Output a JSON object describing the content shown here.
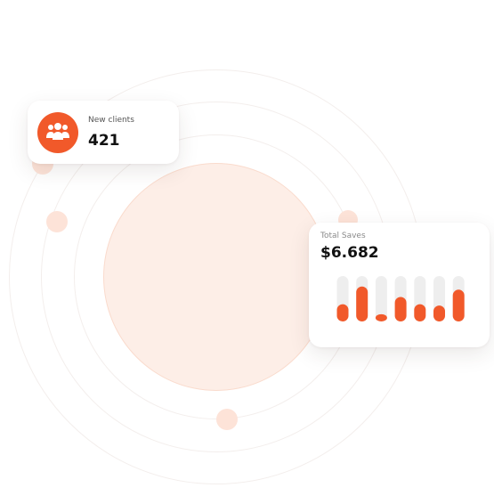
{
  "new_clients": {
    "label": "New clients",
    "value": "421",
    "icon": "users-group-icon"
  },
  "total_saves": {
    "label": "Total Saves",
    "value": "$6.682"
  },
  "colors": {
    "accent": "#f1592a",
    "track": "#eeeeee",
    "core_fill": "#fdeee7",
    "ring": "#f3eeec"
  },
  "chart_data": {
    "type": "bar",
    "categories": [
      "",
      "",
      "",
      "",
      "",
      "",
      ""
    ],
    "values": [
      0.38,
      0.77,
      0.16,
      0.54,
      0.38,
      0.35,
      0.7
    ],
    "offsets": [
      0.62,
      0.23,
      0.84,
      0.46,
      0.62,
      0.65,
      0.3
    ],
    "ylim": [
      0,
      1
    ],
    "grid": false,
    "legend": "none"
  }
}
